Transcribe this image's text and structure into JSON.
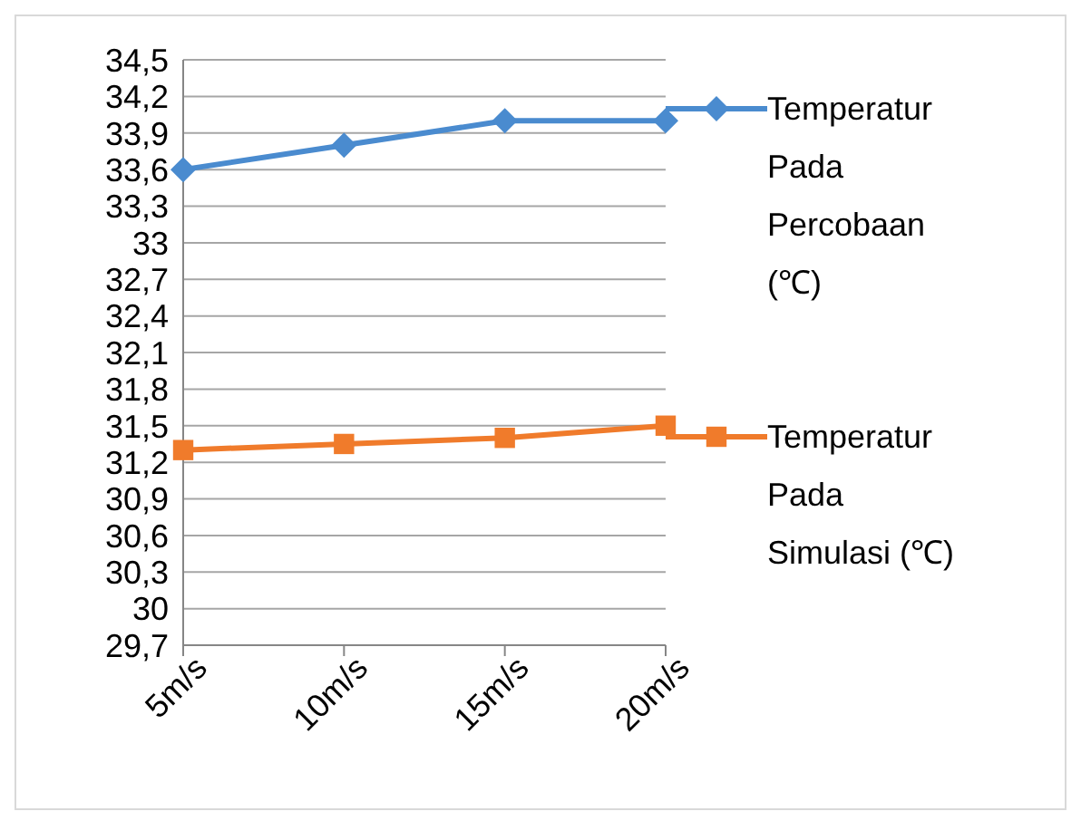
{
  "chart_data": {
    "type": "line",
    "categories": [
      "5m/s",
      "10m/s",
      "15m/s",
      "20m/s"
    ],
    "series": [
      {
        "name": "Temperatur Pada Percobaan (℃)",
        "color": "#4a8bcf",
        "values": [
          33.6,
          33.8,
          34.0,
          34.0
        ],
        "marker": "diamond"
      },
      {
        "name": "Temperatur Pada Simulasi (℃)",
        "color": "#f07b2b",
        "values": [
          31.3,
          31.35,
          31.4,
          31.5
        ],
        "marker": "square"
      }
    ],
    "ylim": [
      29.7,
      34.5
    ],
    "yticks": [
      {
        "value": 29.7,
        "label": "29,7"
      },
      30,
      {
        "value": 30.3,
        "label": "30,3"
      },
      {
        "value": 30.6,
        "label": "30,6"
      },
      {
        "value": 30.9,
        "label": "30,9"
      },
      {
        "value": 31.2,
        "label": "31,2"
      },
      {
        "value": 31.5,
        "label": "31,5"
      },
      {
        "value": 31.8,
        "label": "31,8"
      },
      {
        "value": 32.1,
        "label": "32,1"
      },
      {
        "value": 32.4,
        "label": "32,4"
      },
      {
        "value": 32.7,
        "label": "32,7"
      },
      33,
      {
        "value": 33.3,
        "label": "33,3"
      },
      {
        "value": 33.6,
        "label": "33,6"
      },
      {
        "value": 33.9,
        "label": "33,9"
      },
      {
        "value": 34.2,
        "label": "34,2"
      },
      {
        "value": 34.5,
        "label": "34,5"
      }
    ],
    "grid": "y",
    "legend": "right"
  }
}
